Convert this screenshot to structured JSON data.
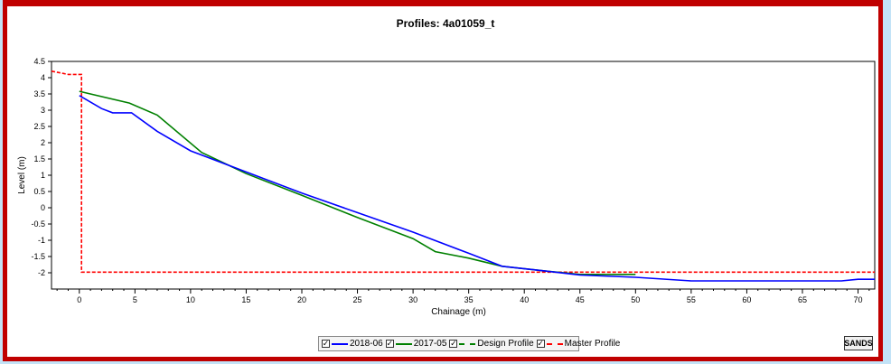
{
  "chart_data": {
    "type": "line",
    "title": "Profiles: 4a01059_t",
    "xlabel": "Chainage (m)",
    "ylabel": "Level (m)",
    "xlim": [
      -2.5,
      71.5
    ],
    "ylim": [
      -2.5,
      4.5
    ],
    "xticks": [
      0,
      5,
      10,
      15,
      20,
      25,
      30,
      35,
      40,
      45,
      50,
      55,
      60,
      65,
      70
    ],
    "yticks": [
      -2,
      -1.5,
      -1,
      -0.5,
      0,
      0.5,
      1,
      1.5,
      2,
      2.5,
      3,
      3.5,
      4,
      4.5
    ],
    "grid": false,
    "legend_position": "bottom",
    "series": [
      {
        "name": "2018-06",
        "color": "#0000ff",
        "style": "solid",
        "x": [
          0,
          2,
          3,
          4.7,
          7,
          10,
          15,
          20,
          25,
          30,
          35,
          38,
          42,
          45,
          50,
          55,
          60,
          65,
          68.5,
          70,
          71.5
        ],
        "y": [
          3.45,
          3.05,
          2.92,
          2.92,
          2.35,
          1.75,
          1.1,
          0.45,
          -0.15,
          -0.75,
          -1.4,
          -1.8,
          -1.95,
          -2.07,
          -2.14,
          -2.25,
          -2.25,
          -2.25,
          -2.25,
          -2.2,
          -2.2
        ]
      },
      {
        "name": "2017-05",
        "color": "#008000",
        "style": "solid",
        "x": [
          0,
          4.5,
          7,
          11,
          15,
          20,
          25,
          30,
          32,
          35,
          38,
          42,
          45,
          50
        ],
        "y": [
          3.58,
          3.22,
          2.85,
          1.7,
          1.05,
          0.38,
          -0.3,
          -0.95,
          -1.35,
          -1.55,
          -1.8,
          -1.95,
          -2.05,
          -2.05
        ]
      },
      {
        "name": "Design Profile",
        "color": "#008000",
        "style": "dashed",
        "x": [],
        "y": []
      },
      {
        "name": "Master Profile",
        "color": "#ff0000",
        "style": "dashed",
        "x": [
          -2.5,
          -1,
          0,
          0.2,
          0.2,
          71.5
        ],
        "y": [
          4.2,
          4.1,
          4.1,
          4.1,
          -1.98,
          -1.98
        ]
      }
    ]
  },
  "legend": {
    "items": [
      {
        "label": "2018-06",
        "checked": "✓",
        "color": "#0000ff",
        "style": "solid"
      },
      {
        "label": "2017-05",
        "checked": "✓",
        "color": "#008000",
        "style": "solid"
      },
      {
        "label": "Design Profile",
        "checked": "✓",
        "color": "#008000",
        "style": "dashed"
      },
      {
        "label": "Master Profile",
        "checked": "✓",
        "color": "#ff0000",
        "style": "dashed"
      }
    ]
  },
  "logo": {
    "label": "SANDS"
  }
}
